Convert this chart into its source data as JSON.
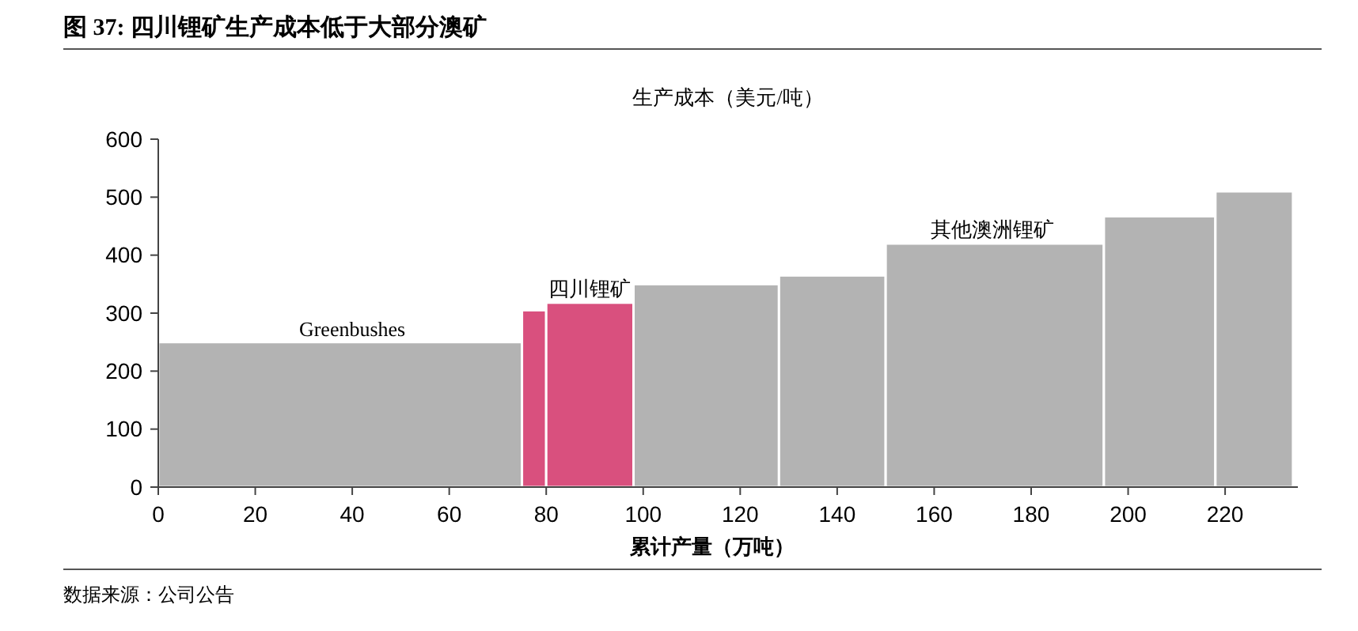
{
  "chart_data": {
    "type": "histogram",
    "title": "图 37: 四川锂矿生产成本低于大部分澳矿",
    "ylabel": "生产成本（美元/吨）",
    "xlabel": "累计产量（万吨）",
    "bins": [
      0,
      75,
      80,
      98,
      128,
      150,
      195,
      218,
      234
    ],
    "values": [
      250,
      305,
      318,
      350,
      365,
      420,
      467,
      510
    ],
    "colors": [
      "#b3b3b3",
      "#d9507e",
      "#d9507e",
      "#b3b3b3",
      "#b3b3b3",
      "#b3b3b3",
      "#b3b3b3",
      "#b3b3b3"
    ],
    "xlim": [
      0,
      235
    ],
    "xticks": [
      0,
      20,
      40,
      60,
      80,
      100,
      120,
      140,
      160,
      180,
      200,
      220
    ],
    "ylim": [
      0,
      600
    ],
    "yticks": [
      0,
      100,
      200,
      300,
      400,
      500,
      600
    ],
    "annotations": [
      {
        "text": "Greenbushes",
        "x": 40,
        "y": 260
      },
      {
        "text": "四川锂矿",
        "x": 89,
        "y": 330
      },
      {
        "text": "其他澳洲锂矿",
        "x": 172,
        "y": 432
      },
      "数据来源：公司公告"
    ]
  }
}
